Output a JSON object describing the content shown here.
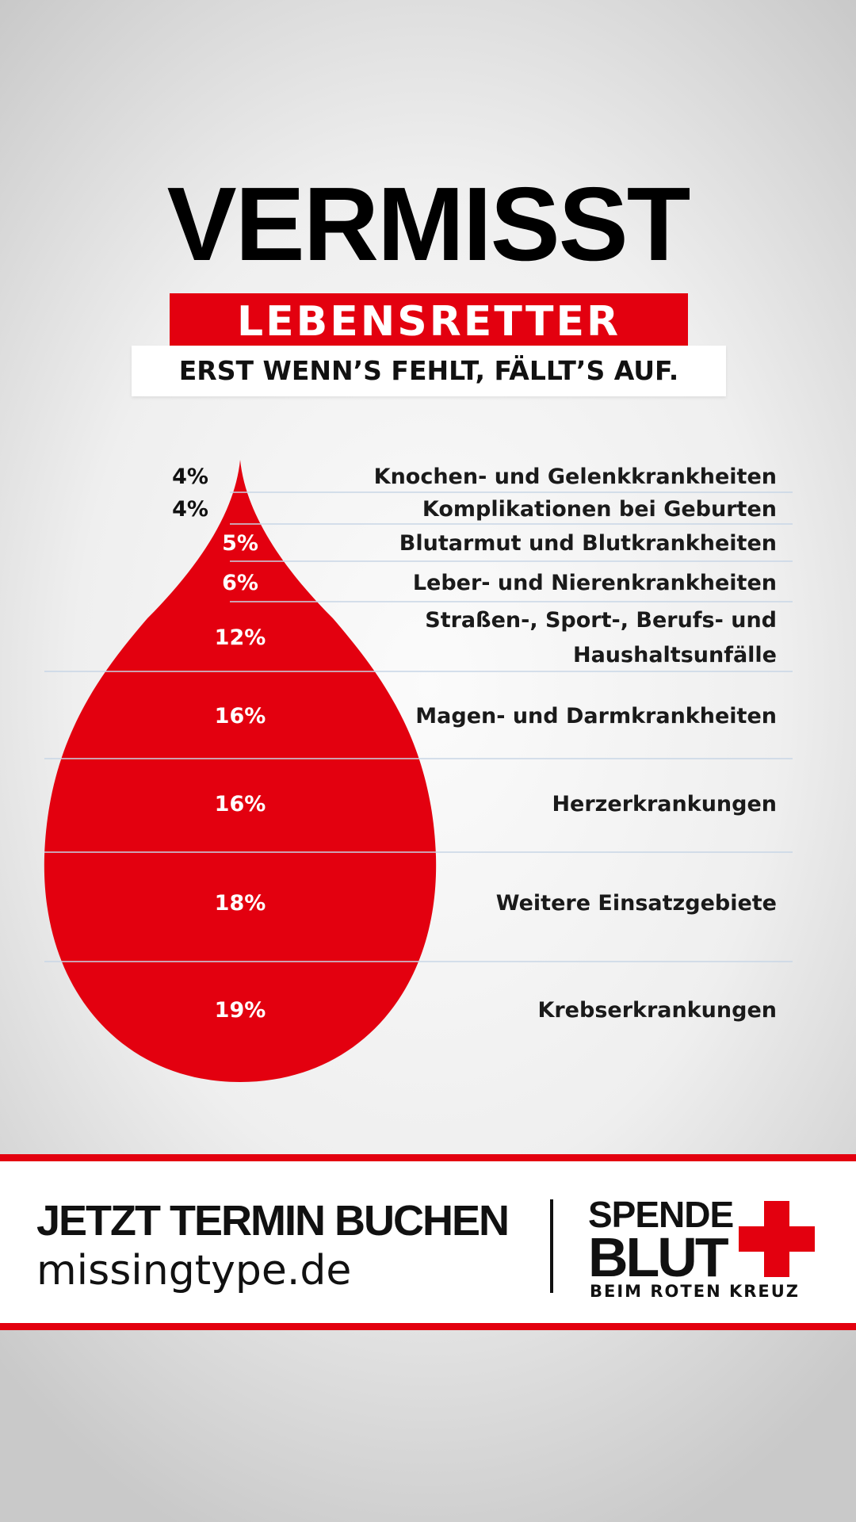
{
  "header": {
    "headline": "VERMISST",
    "banner": "LEBENSRETTER",
    "tagline": "ERST WENN’S FEHLT, FÄLLT’S AUF."
  },
  "chart_data": {
    "type": "bar",
    "categories": [
      "Knochen- und Gelenkkrankheiten",
      "Komplikationen bei Geburten",
      "Blutarmut und Blutkrankheiten",
      "Leber- und Nierenkrankheiten",
      "Straßen-, Sport-, Berufs- und Haushaltsunfälle",
      "Magen- und Darmkrankheiten",
      "Herzerkrankungen",
      "Weitere Einsatzgebiete",
      "Krebserkrankungen"
    ],
    "category_lines": [
      [
        "Knochen- und Gelenkkrankheiten"
      ],
      [
        "Komplikationen bei Geburten"
      ],
      [
        "Blutarmut und Blutkrankheiten"
      ],
      [
        "Leber- und Nierenkrankheiten"
      ],
      [
        "Straßen-, Sport-, Berufs- und",
        "Haushaltsunfälle"
      ],
      [
        "Magen- und Darmkrankheiten"
      ],
      [
        "Herzerkrankungen"
      ],
      [
        "Weitere Einsatzgebiete"
      ],
      [
        "Krebserkrankungen"
      ]
    ],
    "values": [
      4,
      4,
      5,
      6,
      12,
      16,
      16,
      18,
      19
    ],
    "value_labels": [
      "4%",
      "4%",
      "5%",
      "6%",
      "12%",
      "16%",
      "16%",
      "18%",
      "19%"
    ],
    "unit": "%",
    "colors": {
      "fill": "#e3000f",
      "divider": "#c8d6e6",
      "label_inside": "#ffffff",
      "label_outside": "#111111"
    }
  },
  "footer": {
    "cta": "JETZT TERMIN BUCHEN",
    "url": "missingtype.de",
    "logo": {
      "line1": "SPENDE",
      "line2": "BLUT",
      "line3": "BEIM ROTEN KREUZ"
    }
  }
}
